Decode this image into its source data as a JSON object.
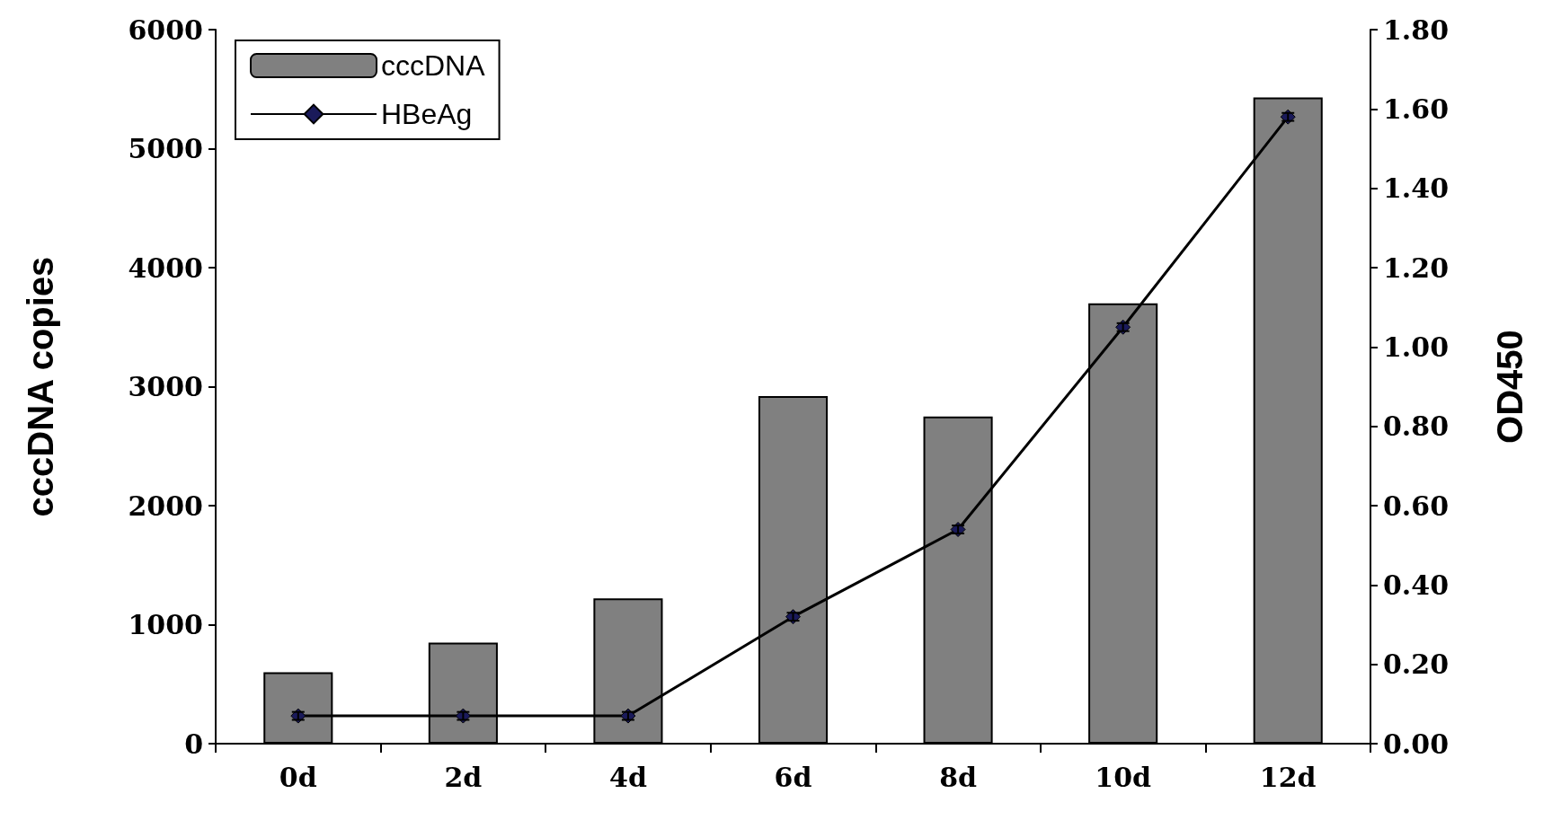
{
  "chart_data": {
    "type": "bar",
    "ylabel": "cccDNA copies",
    "y2label": "OD450",
    "categories": [
      "0d",
      "2d",
      "4d",
      "6d",
      "8d",
      "10d",
      "12d"
    ],
    "series": [
      {
        "name": "cccDNA",
        "color": "#808080",
        "values": [
          600,
          850,
          1220,
          2920,
          2750,
          3700,
          5430
        ]
      },
      {
        "name": "HBeAg",
        "type": "line",
        "axis": "y2",
        "color": "#000000",
        "marker": "diamond",
        "values": [
          0.07,
          0.07,
          0.07,
          0.32,
          0.54,
          1.05,
          1.58
        ],
        "errors": [
          0.01,
          0.01,
          0.01,
          0.01,
          0.01,
          0.01,
          0.01
        ]
      }
    ],
    "ylim": [
      0,
      6000
    ],
    "yticks": [
      0,
      1000,
      2000,
      3000,
      4000,
      5000,
      6000
    ],
    "y2lim": [
      0,
      1.8
    ],
    "y2ticks": [
      {
        "value": 0,
        "label": "0.00"
      },
      {
        "value": 0.2,
        "label": "0.20"
      },
      {
        "value": 0.4,
        "label": "0.40"
      },
      {
        "value": 0.6,
        "label": "0.60"
      },
      {
        "value": 0.8,
        "label": "0.80"
      },
      {
        "value": 1,
        "label": "1.00"
      },
      {
        "value": 1.2,
        "label": "1.20"
      },
      {
        "value": 1.4,
        "label": "1.40"
      },
      {
        "value": 1.6,
        "label": "1.60"
      },
      {
        "value": 1.8,
        "label": "1.80"
      }
    ],
    "grid": false,
    "legend": "top left"
  }
}
